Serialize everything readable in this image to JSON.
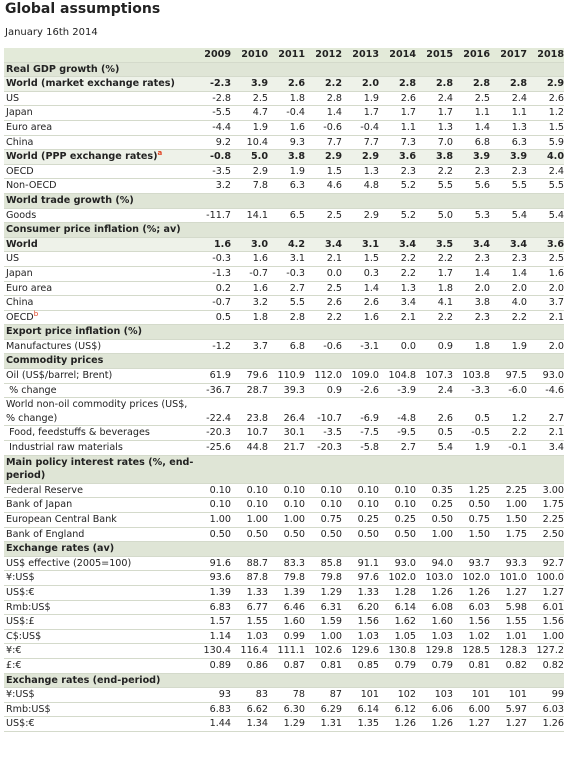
{
  "title": "Global assumptions",
  "date": "January 16th 2014",
  "table": {
    "columns": [
      "2009",
      "2010",
      "2011",
      "2012",
      "2013",
      "2014",
      "2015",
      "2016",
      "2017",
      "2018"
    ],
    "sections": [
      {
        "title": "Real GDP growth (%)",
        "rows": [
          {
            "label": "World (market exchange rates)",
            "bold": true,
            "values": [
              "-2.3",
              "3.9",
              "2.6",
              "2.2",
              "2.0",
              "2.8",
              "2.8",
              "2.8",
              "2.8",
              "2.9"
            ]
          },
          {
            "label": "US",
            "values": [
              "-2.8",
              "2.5",
              "1.8",
              "2.8",
              "1.9",
              "2.6",
              "2.4",
              "2.5",
              "2.4",
              "2.6"
            ]
          },
          {
            "label": "Japan",
            "values": [
              "-5.5",
              "4.7",
              "-0.4",
              "1.4",
              "1.7",
              "1.7",
              "1.7",
              "1.1",
              "1.1",
              "1.2"
            ]
          },
          {
            "label": "Euro area",
            "values": [
              "-4.4",
              "1.9",
              "1.6",
              "-0.6",
              "-0.4",
              "1.1",
              "1.3",
              "1.4",
              "1.3",
              "1.5"
            ]
          },
          {
            "label": "China",
            "values": [
              "9.2",
              "10.4",
              "9.3",
              "7.7",
              "7.7",
              "7.3",
              "7.0",
              "6.8",
              "6.3",
              "5.9"
            ]
          },
          {
            "label": "World (PPP exchange rates)",
            "note": "a",
            "bold": true,
            "values": [
              "-0.8",
              "5.0",
              "3.8",
              "2.9",
              "2.9",
              "3.6",
              "3.8",
              "3.9",
              "3.9",
              "4.0"
            ]
          },
          {
            "label": "OECD",
            "values": [
              "-3.5",
              "2.9",
              "1.9",
              "1.5",
              "1.3",
              "2.3",
              "2.2",
              "2.3",
              "2.3",
              "2.4"
            ]
          },
          {
            "label": "Non-OECD",
            "values": [
              "3.2",
              "7.8",
              "6.3",
              "4.6",
              "4.8",
              "5.2",
              "5.5",
              "5.6",
              "5.5",
              "5.5"
            ]
          }
        ]
      },
      {
        "title": "World trade growth (%)",
        "rows": [
          {
            "label": "Goods",
            "values": [
              "-11.7",
              "14.1",
              "6.5",
              "2.5",
              "2.9",
              "5.2",
              "5.0",
              "5.3",
              "5.4",
              "5.4"
            ]
          }
        ]
      },
      {
        "title": "Consumer price inflation (%; av)",
        "rows": [
          {
            "label": "World",
            "bold": true,
            "values": [
              "1.6",
              "3.0",
              "4.2",
              "3.4",
              "3.1",
              "3.4",
              "3.5",
              "3.4",
              "3.4",
              "3.6"
            ]
          },
          {
            "label": "US",
            "values": [
              "-0.3",
              "1.6",
              "3.1",
              "2.1",
              "1.5",
              "2.2",
              "2.2",
              "2.3",
              "2.3",
              "2.5"
            ]
          },
          {
            "label": "Japan",
            "values": [
              "-1.3",
              "-0.7",
              "-0.3",
              "0.0",
              "0.3",
              "2.2",
              "1.7",
              "1.4",
              "1.4",
              "1.6"
            ]
          },
          {
            "label": "Euro area",
            "values": [
              "0.2",
              "1.6",
              "2.7",
              "2.5",
              "1.4",
              "1.3",
              "1.8",
              "2.0",
              "2.0",
              "2.0"
            ]
          },
          {
            "label": "China",
            "values": [
              "-0.7",
              "3.2",
              "5.5",
              "2.6",
              "2.6",
              "3.4",
              "4.1",
              "3.8",
              "4.0",
              "3.7"
            ]
          },
          {
            "label": "OECD",
            "note": "b",
            "values": [
              "0.5",
              "1.8",
              "2.8",
              "2.2",
              "1.6",
              "2.1",
              "2.2",
              "2.3",
              "2.2",
              "2.1"
            ]
          }
        ]
      },
      {
        "title": "Export price inflation (%)",
        "rows": [
          {
            "label": "Manufactures (US$)",
            "values": [
              "-1.2",
              "3.7",
              "6.8",
              "-0.6",
              "-3.1",
              "0.0",
              "0.9",
              "1.8",
              "1.9",
              "2.0"
            ]
          }
        ]
      },
      {
        "title": "Commodity prices",
        "rows": [
          {
            "label": "Oil (US$/barrel; Brent)",
            "values": [
              "61.9",
              "79.6",
              "110.9",
              "112.0",
              "109.0",
              "104.8",
              "107.3",
              "103.8",
              "97.5",
              "93.0"
            ]
          },
          {
            "label": " % change",
            "values": [
              "-36.7",
              "28.7",
              "39.3",
              "0.9",
              "-2.6",
              "-3.9",
              "2.4",
              "-3.3",
              "-6.0",
              "-4.6"
            ]
          },
          {
            "label": "World non-oil commodity prices (US$, % change)",
            "values": [
              "-22.4",
              "23.8",
              "26.4",
              "-10.7",
              "-6.9",
              "-4.8",
              "2.6",
              "0.5",
              "1.2",
              "2.7"
            ]
          },
          {
            "label": " Food, feedstuffs & beverages",
            "values": [
              "-20.3",
              "10.7",
              "30.1",
              "-3.5",
              "-7.5",
              "-9.5",
              "0.5",
              "-0.5",
              "2.2",
              "2.1"
            ]
          },
          {
            "label": " Industrial raw materials",
            "values": [
              "-25.6",
              "44.8",
              "21.7",
              "-20.3",
              "-5.8",
              "2.7",
              "5.4",
              "1.9",
              "-0.1",
              "3.4"
            ]
          }
        ]
      },
      {
        "title": "Main policy interest rates (%, end-period)",
        "rows": [
          {
            "label": "Federal Reserve",
            "values": [
              "0.10",
              "0.10",
              "0.10",
              "0.10",
              "0.10",
              "0.10",
              "0.35",
              "1.25",
              "2.25",
              "3.00"
            ]
          },
          {
            "label": "Bank of Japan",
            "values": [
              "0.10",
              "0.10",
              "0.10",
              "0.10",
              "0.10",
              "0.10",
              "0.25",
              "0.50",
              "1.00",
              "1.75"
            ]
          },
          {
            "label": "European Central Bank",
            "values": [
              "1.00",
              "1.00",
              "1.00",
              "0.75",
              "0.25",
              "0.25",
              "0.50",
              "0.75",
              "1.50",
              "2.25"
            ]
          },
          {
            "label": "Bank of England",
            "values": [
              "0.50",
              "0.50",
              "0.50",
              "0.50",
              "0.50",
              "0.50",
              "1.00",
              "1.50",
              "1.75",
              "2.50"
            ]
          }
        ]
      },
      {
        "title": "Exchange rates (av)",
        "rows": [
          {
            "label": "US$ effective (2005=100)",
            "values": [
              "91.6",
              "88.7",
              "83.3",
              "85.8",
              "91.1",
              "93.0",
              "94.0",
              "93.7",
              "93.3",
              "92.7"
            ]
          },
          {
            "label": "¥:US$",
            "values": [
              "93.6",
              "87.8",
              "79.8",
              "79.8",
              "97.6",
              "102.0",
              "103.0",
              "102.0",
              "101.0",
              "100.0"
            ]
          },
          {
            "label": "US$:€",
            "values": [
              "1.39",
              "1.33",
              "1.39",
              "1.29",
              "1.33",
              "1.28",
              "1.26",
              "1.26",
              "1.27",
              "1.27"
            ]
          },
          {
            "label": "Rmb:US$",
            "values": [
              "6.83",
              "6.77",
              "6.46",
              "6.31",
              "6.20",
              "6.14",
              "6.08",
              "6.03",
              "5.98",
              "6.01"
            ]
          },
          {
            "label": "US$:£",
            "values": [
              "1.57",
              "1.55",
              "1.60",
              "1.59",
              "1.56",
              "1.62",
              "1.60",
              "1.56",
              "1.55",
              "1.56"
            ]
          },
          {
            "label": "C$:US$",
            "values": [
              "1.14",
              "1.03",
              "0.99",
              "1.00",
              "1.03",
              "1.05",
              "1.03",
              "1.02",
              "1.01",
              "1.00"
            ]
          },
          {
            "label": "¥:€",
            "values": [
              "130.4",
              "116.4",
              "111.1",
              "102.6",
              "129.6",
              "130.8",
              "129.8",
              "128.5",
              "128.3",
              "127.2"
            ]
          },
          {
            "label": "£:€",
            "values": [
              "0.89",
              "0.86",
              "0.87",
              "0.81",
              "0.85",
              "0.79",
              "0.79",
              "0.81",
              "0.82",
              "0.82"
            ]
          }
        ]
      },
      {
        "title": "Exchange rates (end-period)",
        "rows": [
          {
            "label": "¥:US$",
            "values": [
              "93",
              "83",
              "78",
              "87",
              "101",
              "102",
              "103",
              "101",
              "101",
              "99"
            ]
          },
          {
            "label": "Rmb:US$",
            "values": [
              "6.83",
              "6.62",
              "6.30",
              "6.29",
              "6.14",
              "6.12",
              "6.06",
              "6.00",
              "5.97",
              "6.03"
            ]
          },
          {
            "label": "US$:€",
            "values": [
              "1.44",
              "1.34",
              "1.29",
              "1.31",
              "1.35",
              "1.26",
              "1.26",
              "1.27",
              "1.27",
              "1.26"
            ]
          }
        ]
      }
    ]
  }
}
